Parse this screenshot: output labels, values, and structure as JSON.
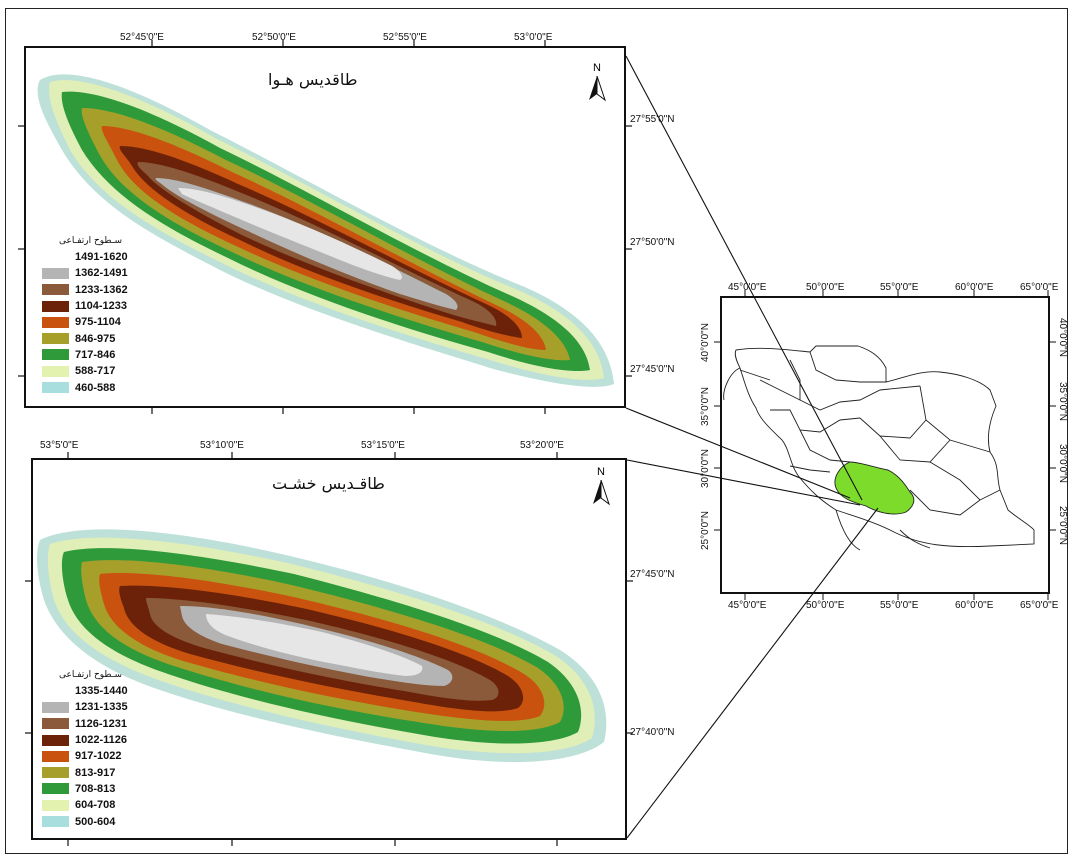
{
  "map1": {
    "title": "طاقدیس هـوا",
    "lon_labels": [
      "52°45'0\"E",
      "52°50'0\"E",
      "52°55'0\"E",
      "53°0'0\"E"
    ],
    "lat_labels": [
      "27°55'0\"N",
      "27°50'0\"N",
      "27°45'0\"N"
    ],
    "north_label": "N",
    "legend_title": "سـطوح ارتفـاعی",
    "legend": [
      {
        "label": "1491-1620",
        "color": "#ffffff"
      },
      {
        "label": "1362-1491",
        "color": "#b4b4b4"
      },
      {
        "label": "1233-1362",
        "color": "#8a5a3a"
      },
      {
        "label": "1104-1233",
        "color": "#6b2208"
      },
      {
        "label": "975-1104",
        "color": "#c8520e"
      },
      {
        "label": "846-975",
        "color": "#a6a02a"
      },
      {
        "label": "717-846",
        "color": "#2e9a3a"
      },
      {
        "label": "588-717",
        "color": "#e4f2b0"
      },
      {
        "label": "460-588",
        "color": "#a8dede"
      }
    ]
  },
  "map2": {
    "title": "طاقـدیس خشـت",
    "lon_labels": [
      "53°5'0\"E",
      "53°10'0\"E",
      "53°15'0\"E",
      "53°20'0\"E"
    ],
    "lat_labels": [
      "27°45'0\"N",
      "27°40'0\"N"
    ],
    "north_label": "N",
    "legend_title": "سـطوح ارتفـاعی",
    "legend": [
      {
        "label": "1335-1440",
        "color": "#ffffff"
      },
      {
        "label": "1231-1335",
        "color": "#b4b4b4"
      },
      {
        "label": "1126-1231",
        "color": "#8a5a3a"
      },
      {
        "label": "1022-1126",
        "color": "#6b2208"
      },
      {
        "label": "917-1022",
        "color": "#c8520e"
      },
      {
        "label": "813-917",
        "color": "#a6a02a"
      },
      {
        "label": "708-813",
        "color": "#2e9a3a"
      },
      {
        "label": "604-708",
        "color": "#e4f2b0"
      },
      {
        "label": "500-604",
        "color": "#a8dede"
      }
    ]
  },
  "overview": {
    "lon_labels": [
      "45°0'0\"E",
      "50°0'0\"E",
      "55°0'0\"E",
      "60°0'0\"E",
      "65°0'0\"E"
    ],
    "lat_labels": [
      "40°0'0\"N",
      "35°0'0\"N",
      "30°0'0\"N",
      "25°0'0\"N"
    ],
    "highlight_color": "#7ddb2c"
  }
}
